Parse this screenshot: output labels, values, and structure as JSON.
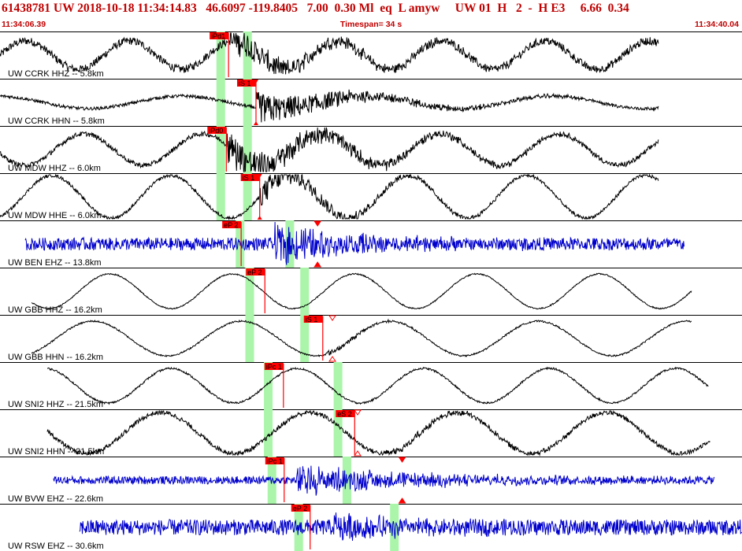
{
  "header": {
    "title": "61438781 UW 2018-10-18 11:34:14.83   46.6097 -119.8405   7.00  0.30 Ml  eq  L amyw     UW 01  H   2  -  H E3     6.66  0.34",
    "start_time": "11:34:06.39",
    "timespan": "Timespan=  34 s",
    "end_time": "11:34:40.04"
  },
  "colors": {
    "trace_black": "#000000",
    "trace_blue": "#0000cc",
    "pick_red": "#ff0000",
    "window_green": "#aaf5aa",
    "header_red": "#c00000"
  },
  "traces": [
    {
      "label": "UW CCRK HHZ -- 5.8km",
      "color": "black",
      "start": 0.0,
      "end": 0.887,
      "lowfreq": [
        {
          "a": 18,
          "p": 0.14
        }
      ],
      "noise": 5,
      "burst": [
        0.31,
        0.12,
        18
      ],
      "picks": [
        {
          "label": "iPd1",
          "t": 0.308,
          "style": "solid"
        }
      ],
      "windows": [
        0.297,
        0.333
      ]
    },
    {
      "label": "UW CCRK HHN -- 5.8km",
      "color": "black",
      "start": 0.0,
      "end": 0.887,
      "lowfreq": [
        {
          "a": 8,
          "p": 0.25
        }
      ],
      "noise": 2,
      "burst": [
        0.345,
        0.14,
        20
      ],
      "picks": [
        {
          "label": "iS 1",
          "t": 0.345,
          "style": "solid",
          "marker": true
        }
      ],
      "windows": [
        0.297,
        0.333
      ]
    },
    {
      "label": "UW MDW HHZ -- 6.0km",
      "color": "black",
      "start": 0.0,
      "end": 0.887,
      "lowfreq": [
        {
          "a": 20,
          "p": 0.16
        }
      ],
      "noise": 3,
      "burst": [
        0.305,
        0.16,
        22
      ],
      "picks": [
        {
          "label": "iPd0",
          "t": 0.305,
          "style": "solid"
        }
      ],
      "windows": [
        0.297,
        0.333
      ]
    },
    {
      "label": "UW MDW HHE -- 6.0km",
      "color": "black",
      "start": 0.0,
      "end": 0.887,
      "lowfreq": [
        {
          "a": 27,
          "p": 0.16
        }
      ],
      "noise": 2,
      "burst": [
        0.35,
        0.12,
        16
      ],
      "picks": [
        {
          "label": "iS 1",
          "t": 0.35,
          "style": "solid",
          "marker": true
        }
      ],
      "windows": [
        0.297,
        0.333
      ]
    },
    {
      "label": "UW BEN EHZ -- 13.8km",
      "color": "blue",
      "start": 0.034,
      "end": 0.922,
      "lowfreq": [],
      "noise": 8,
      "burst": [
        0.37,
        0.12,
        22
      ],
      "picks": [
        {
          "label": "eP 2",
          "t": 0.325,
          "style": "solid"
        },
        {
          "label": "",
          "t": 0.428,
          "style": "marker"
        }
      ],
      "windows": [
        0.323,
        0.39
      ]
    },
    {
      "label": "UW GBB HHZ -- 16.2km",
      "color": "black",
      "start": 0.042,
      "end": 0.932,
      "lowfreq": [
        {
          "a": 22,
          "p": 0.165
        }
      ],
      "noise": 0.8,
      "burst": null,
      "picks": [
        {
          "label": "eP 2",
          "t": 0.357,
          "style": "solid"
        }
      ],
      "windows": [
        0.336,
        0.41
      ]
    },
    {
      "label": "UW GBB HHN -- 16.2km",
      "color": "black",
      "start": 0.042,
      "end": 0.932,
      "lowfreq": [
        {
          "a": 22,
          "p": 0.2
        }
      ],
      "noise": 1,
      "burst": [
        0.44,
        0.06,
        4
      ],
      "picks": [
        {
          "label": "iS 1",
          "t": 0.435,
          "style": "solid"
        },
        {
          "label": "",
          "t": 0.448,
          "style": "marker-open"
        }
      ],
      "windows": [
        0.336,
        0.41
      ]
    },
    {
      "label": "UW SNI2 HHZ -- 21.5km",
      "color": "black",
      "start": 0.064,
      "end": 0.955,
      "lowfreq": [
        {
          "a": 22,
          "p": 0.17
        }
      ],
      "noise": 1.2,
      "burst": null,
      "picks": [
        {
          "label": "iPc 1",
          "t": 0.382,
          "style": "solid"
        }
      ],
      "windows": [
        0.361,
        0.455
      ]
    },
    {
      "label": "UW SNI2 HHN -- 21.5km",
      "color": "black",
      "start": 0.064,
      "end": 0.958,
      "lowfreq": [
        {
          "a": 26,
          "p": 0.2
        }
      ],
      "noise": 3,
      "burst": [
        0.52,
        0.1,
        5
      ],
      "picks": [
        {
          "label": "eS 2",
          "t": 0.478,
          "style": "solid"
        },
        {
          "label": "",
          "t": 0.482,
          "style": "marker-open"
        }
      ],
      "windows": [
        0.361,
        0.455
      ]
    },
    {
      "label": "UW BVW EHZ -- 22.6km",
      "color": "blue",
      "start": 0.072,
      "end": 0.963,
      "lowfreq": [],
      "noise": 5,
      "burst": [
        0.4,
        0.16,
        18
      ],
      "picks": [
        {
          "label": "iPc 1",
          "t": 0.383,
          "style": "solid"
        },
        {
          "label": "",
          "t": 0.542,
          "style": "marker"
        }
      ],
      "windows": [
        0.366,
        0.467
      ]
    },
    {
      "label": "UW RSW EHZ -- 30.6km",
      "color": "blue",
      "start": 0.107,
      "end": 1.0,
      "lowfreq": [],
      "noise": 10,
      "burst": [
        0.45,
        0.1,
        14
      ],
      "picks": [
        {
          "label": "eP 2",
          "t": 0.418,
          "style": "solid"
        }
      ],
      "windows": [
        0.402,
        0.531
      ]
    }
  ]
}
